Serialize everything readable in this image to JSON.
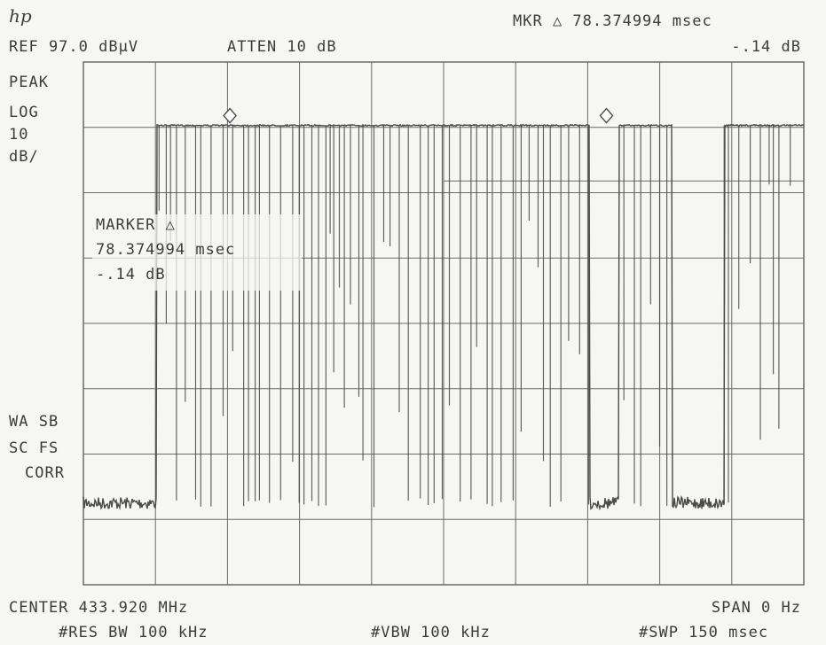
{
  "header": {
    "logo": "hp",
    "ref_level": "REF 97.0 dBμV",
    "attenuation": "ATTEN 10 dB",
    "marker_readout": "MKR △ 78.374994 msec",
    "marker_delta_db": "-.14 dB"
  },
  "left_panel": {
    "detector": "PEAK",
    "scale_mode": "LOG",
    "scale_value": "10",
    "scale_unit": "dB/",
    "flags_line1": "WA SB",
    "flags_line2": "SC FS",
    "flags_line3": "CORR"
  },
  "marker_box": {
    "title": "MARKER △",
    "time": "78.374994 msec",
    "delta": "-.14 dB"
  },
  "footer": {
    "center": "CENTER 433.920 MHz",
    "span": "SPAN 0 Hz",
    "res_bw": "#RES BW 100 kHz",
    "vbw": "#VBW 100 kHz",
    "sweep": "#SWP 150 msec"
  },
  "colors": {
    "background": "#f6f6f3",
    "trace": "#4a4a4a",
    "grid": "#6a6a6a"
  },
  "chart_data": {
    "type": "line",
    "x_unit": "msec",
    "y_unit": "dBμV",
    "xlim": [
      0,
      150
    ],
    "ylim": [
      17,
      97
    ],
    "grid": true,
    "y_divisions": 8,
    "x_divisions": 10,
    "reference_level": 97,
    "high_level": 87.3,
    "noise_floor": 29.5,
    "pulse_train_start": 15.2,
    "pulse_train_end": 147.5,
    "gap_1": [
      105.4,
      111.5
    ],
    "gap_2": [
      122.6,
      133.4
    ],
    "markers": [
      {
        "label": "marker-1",
        "x": 30.5
      },
      {
        "label": "marker-2",
        "x": 108.9
      }
    ],
    "marker_delta_ms": 78.374994,
    "marker_delta_db": -0.14
  }
}
